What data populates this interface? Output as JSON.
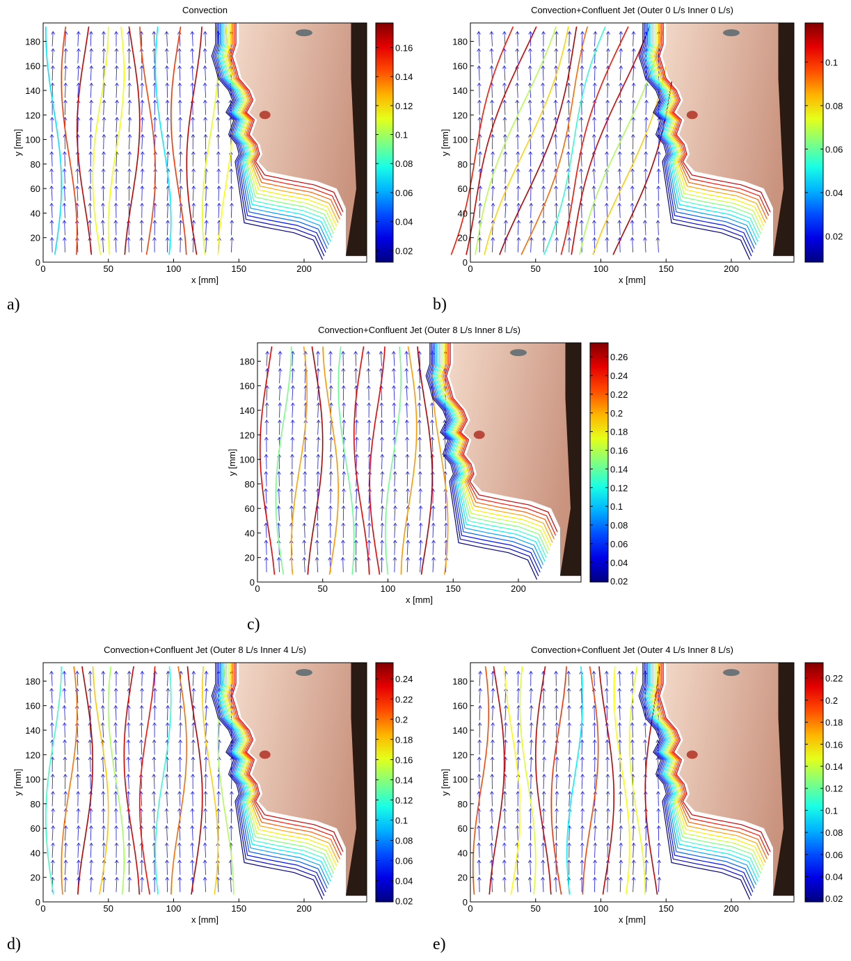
{
  "chart_data": [
    {
      "type": "contour",
      "panel_label": "a)",
      "title": "Convection",
      "xlabel": "x [mm]",
      "ylabel": "y [mm]",
      "xlim": [
        0,
        248
      ],
      "ylim": [
        0,
        195
      ],
      "xticks": [
        0,
        50,
        100,
        150,
        200
      ],
      "yticks": [
        0,
        20,
        40,
        60,
        80,
        100,
        120,
        140,
        160,
        180
      ],
      "colorbar": {
        "lim": [
          0.012,
          0.177
        ],
        "ticks": [
          0.02,
          0.04,
          0.06,
          0.08,
          0.1,
          0.12,
          0.14,
          0.16
        ]
      }
    },
    {
      "type": "contour",
      "panel_label": "b)",
      "title": "Convection+Confluent Jet (Outer 0 L/s Inner 0 L/s)",
      "xlabel": "x [mm]",
      "ylabel": "y [mm]",
      "xlim": [
        0,
        248
      ],
      "ylim": [
        0,
        195
      ],
      "xticks": [
        0,
        50,
        100,
        150,
        200
      ],
      "yticks": [
        0,
        20,
        40,
        60,
        80,
        100,
        120,
        140,
        160,
        180
      ],
      "colorbar": {
        "lim": [
          0.008,
          0.118
        ],
        "ticks": [
          0.02,
          0.04,
          0.06,
          0.08,
          0.1
        ]
      }
    },
    {
      "type": "contour",
      "panel_label": "c)",
      "title": "Convection+Confluent Jet (Outer 8 L/s Inner 8 L/s)",
      "xlabel": "x [mm]",
      "ylabel": "y [mm]",
      "xlim": [
        0,
        248
      ],
      "ylim": [
        0,
        195
      ],
      "xticks": [
        0,
        50,
        100,
        150,
        200
      ],
      "yticks": [
        0,
        20,
        40,
        60,
        80,
        100,
        120,
        140,
        160,
        180
      ],
      "colorbar": {
        "lim": [
          0.019,
          0.275
        ],
        "ticks": [
          0.02,
          0.04,
          0.06,
          0.08,
          0.1,
          0.12,
          0.14,
          0.16,
          0.18,
          0.2,
          0.22,
          0.24,
          0.26
        ]
      }
    },
    {
      "type": "contour",
      "panel_label": "d)",
      "title": "Convection+Confluent Jet (Outer 8 L/s Inner 4 L/s)",
      "xlabel": "x [mm]",
      "ylabel": "y [mm]",
      "xlim": [
        0,
        248
      ],
      "ylim": [
        0,
        195
      ],
      "xticks": [
        0,
        50,
        100,
        150,
        200
      ],
      "yticks": [
        0,
        20,
        40,
        60,
        80,
        100,
        120,
        140,
        160,
        180
      ],
      "colorbar": {
        "lim": [
          0.019,
          0.256
        ],
        "ticks": [
          0.02,
          0.04,
          0.06,
          0.08,
          0.1,
          0.12,
          0.14,
          0.16,
          0.18,
          0.2,
          0.22,
          0.24
        ]
      }
    },
    {
      "type": "contour",
      "panel_label": "e)",
      "title": "Convection+Confluent Jet (Outer 4 L/s Inner 8 L/s)",
      "xlabel": "x [mm]",
      "ylabel": "y [mm]",
      "xlim": [
        0,
        248
      ],
      "ylim": [
        0,
        195
      ],
      "xticks": [
        0,
        50,
        100,
        150,
        200
      ],
      "yticks": [
        0,
        20,
        40,
        60,
        80,
        100,
        120,
        140,
        160,
        180
      ],
      "colorbar": {
        "lim": [
          0.017,
          0.234
        ],
        "ticks": [
          0.02,
          0.04,
          0.06,
          0.08,
          0.1,
          0.12,
          0.14,
          0.16,
          0.18,
          0.2,
          0.22
        ]
      }
    }
  ]
}
